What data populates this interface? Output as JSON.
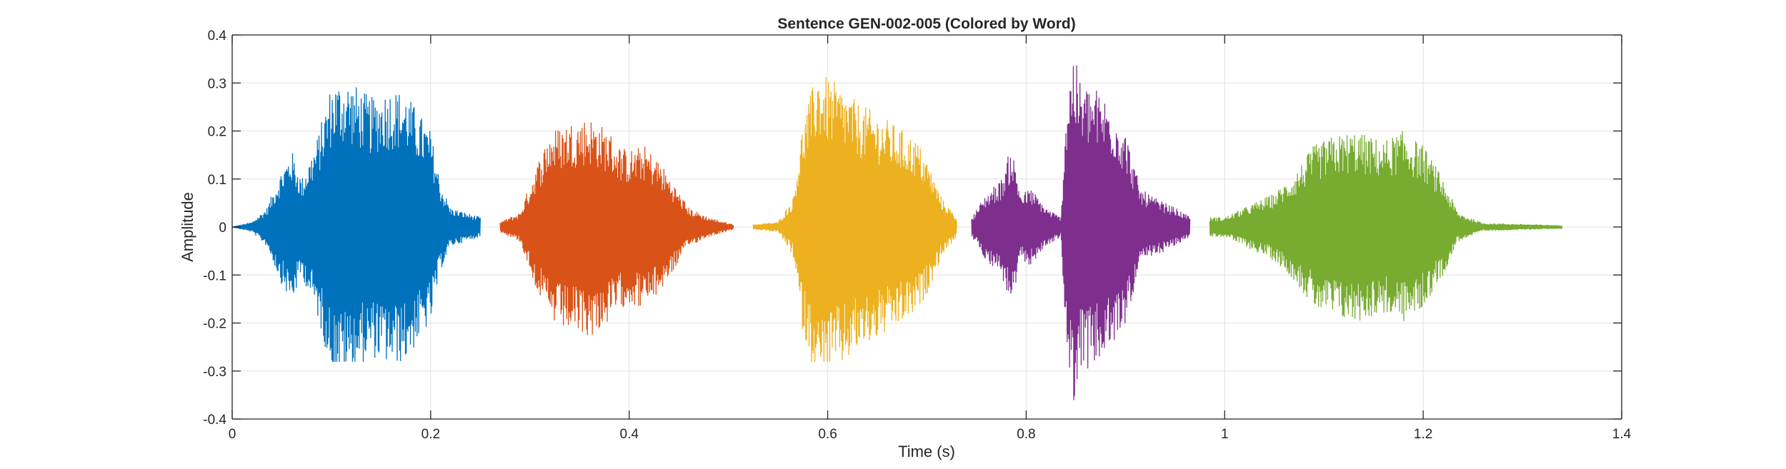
{
  "chart_data": {
    "type": "line",
    "title": "Sentence GEN-002-005 (Colored by Word)",
    "xlabel": "Time (s)",
    "ylabel": "Amplitude",
    "xlim": [
      0,
      1.4
    ],
    "ylim": [
      -0.4,
      0.4
    ],
    "xticks": [
      0,
      0.2,
      0.4,
      0.6,
      0.8,
      1,
      1.2,
      1.4
    ],
    "xtick_labels": [
      "0",
      "0.2",
      "0.4",
      "0.6",
      "0.8",
      "1",
      "1.2",
      "1.4"
    ],
    "yticks": [
      -0.4,
      -0.3,
      -0.2,
      -0.1,
      0,
      0.1,
      0.2,
      0.3,
      0.4
    ],
    "ytick_labels": [
      "-0.4",
      "-0.3",
      "-0.2",
      "-0.1",
      "0",
      "0.1",
      "0.2",
      "0.3",
      "0.4"
    ],
    "grid": true,
    "legend": "none",
    "series": [
      {
        "color": "#0072BD",
        "t_start": 0.0,
        "t_end": 0.25,
        "envelope": [
          [
            0.0,
            0.0
          ],
          [
            0.02,
            0.01
          ],
          [
            0.035,
            0.04
          ],
          [
            0.05,
            0.12
          ],
          [
            0.06,
            0.16
          ],
          [
            0.07,
            0.1
          ],
          [
            0.085,
            0.18
          ],
          [
            0.1,
            0.3
          ],
          [
            0.115,
            0.31
          ],
          [
            0.14,
            0.27
          ],
          [
            0.16,
            0.29
          ],
          [
            0.175,
            0.28
          ],
          [
            0.2,
            0.2
          ],
          [
            0.21,
            0.09
          ],
          [
            0.22,
            0.04
          ],
          [
            0.235,
            0.03
          ],
          [
            0.25,
            0.02
          ]
        ],
        "min_value": -0.28,
        "max_value": 0.33
      },
      {
        "color": "#D95319",
        "t_start": 0.27,
        "t_end": 0.505,
        "envelope": [
          [
            0.27,
            0.01
          ],
          [
            0.29,
            0.03
          ],
          [
            0.305,
            0.12
          ],
          [
            0.32,
            0.2
          ],
          [
            0.34,
            0.22
          ],
          [
            0.36,
            0.23
          ],
          [
            0.38,
            0.2
          ],
          [
            0.39,
            0.17
          ],
          [
            0.4,
            0.16
          ],
          [
            0.415,
            0.17
          ],
          [
            0.43,
            0.14
          ],
          [
            0.445,
            0.09
          ],
          [
            0.46,
            0.04
          ],
          [
            0.48,
            0.02
          ],
          [
            0.505,
            0.005
          ]
        ],
        "min_value": -0.26,
        "max_value": 0.23
      },
      {
        "color": "#EDB120",
        "t_start": 0.525,
        "t_end": 0.73,
        "envelope": [
          [
            0.525,
            0.005
          ],
          [
            0.55,
            0.01
          ],
          [
            0.565,
            0.06
          ],
          [
            0.575,
            0.22
          ],
          [
            0.59,
            0.33
          ],
          [
            0.6,
            0.31
          ],
          [
            0.615,
            0.29
          ],
          [
            0.63,
            0.26
          ],
          [
            0.655,
            0.23
          ],
          [
            0.67,
            0.21
          ],
          [
            0.69,
            0.18
          ],
          [
            0.7,
            0.14
          ],
          [
            0.715,
            0.06
          ],
          [
            0.73,
            0.02
          ]
        ],
        "min_value": -0.28,
        "max_value": 0.34
      },
      {
        "color": "#7E2F8E",
        "t_start": 0.745,
        "t_end": 0.965,
        "envelope": [
          [
            0.745,
            0.02
          ],
          [
            0.76,
            0.07
          ],
          [
            0.775,
            0.1
          ],
          [
            0.785,
            0.17
          ],
          [
            0.795,
            0.07
          ],
          [
            0.805,
            0.08
          ],
          [
            0.82,
            0.04
          ],
          [
            0.835,
            0.02
          ],
          [
            0.84,
            0.25
          ],
          [
            0.847,
            0.37
          ],
          [
            0.855,
            0.3
          ],
          [
            0.87,
            0.29
          ],
          [
            0.885,
            0.26
          ],
          [
            0.9,
            0.2
          ],
          [
            0.915,
            0.08
          ],
          [
            0.93,
            0.06
          ],
          [
            0.95,
            0.04
          ],
          [
            0.965,
            0.02
          ]
        ],
        "min_value": -0.36,
        "max_value": 0.37
      },
      {
        "color": "#77AC30",
        "t_start": 0.985,
        "t_end": 1.34,
        "envelope": [
          [
            0.985,
            0.02
          ],
          [
            1.0,
            0.02
          ],
          [
            1.02,
            0.04
          ],
          [
            1.05,
            0.07
          ],
          [
            1.07,
            0.11
          ],
          [
            1.09,
            0.17
          ],
          [
            1.11,
            0.19
          ],
          [
            1.13,
            0.2
          ],
          [
            1.16,
            0.18
          ],
          [
            1.18,
            0.2
          ],
          [
            1.2,
            0.17
          ],
          [
            1.22,
            0.1
          ],
          [
            1.235,
            0.03
          ],
          [
            1.26,
            0.008
          ],
          [
            1.34,
            0.003
          ]
        ],
        "min_value": -0.21,
        "max_value": 0.2
      }
    ]
  }
}
